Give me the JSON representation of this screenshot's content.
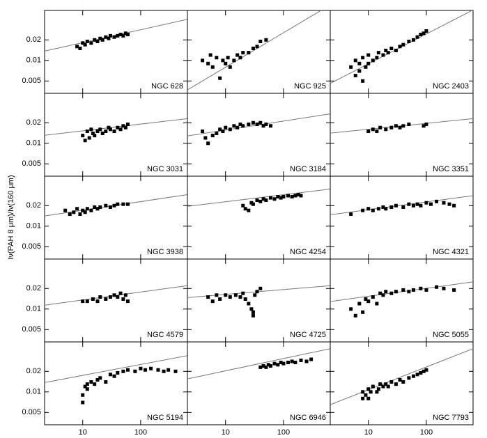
{
  "ylabel": "Iν(PAH 8 μm)/Iν(160 μm)",
  "chart_data": [
    {
      "type": "scatter",
      "title": "NGC 628",
      "xlim": [
        2.2,
        640
      ],
      "ylim": [
        0.0033,
        0.054
      ],
      "xticks": [
        10,
        100
      ],
      "yticks": [
        0.005,
        0.01,
        0.02
      ],
      "log_x": true,
      "log_y": true,
      "color": "#000000",
      "x": [
        8,
        9,
        10,
        11,
        12,
        14,
        16,
        18,
        20,
        22,
        25,
        28,
        30,
        35,
        40,
        45,
        50,
        55,
        60
      ],
      "y": [
        0.016,
        0.015,
        0.018,
        0.017,
        0.019,
        0.018,
        0.02,
        0.019,
        0.021,
        0.02,
        0.022,
        0.021,
        0.023,
        0.022,
        0.023,
        0.024,
        0.023,
        0.025,
        0.024
      ],
      "fit": [
        0.0137,
        0.04
      ]
    },
    {
      "type": "scatter",
      "title": "NGC 925",
      "xlim": [
        2.2,
        640
      ],
      "ylim": [
        0.0033,
        0.054
      ],
      "xticks": [
        10,
        100
      ],
      "yticks": [
        0.005,
        0.01,
        0.02
      ],
      "log_x": true,
      "log_y": true,
      "color": "#000000",
      "x": [
        4,
        5,
        5.5,
        6,
        7,
        8,
        9,
        10,
        11,
        12,
        14,
        16,
        18,
        20,
        25,
        30,
        35,
        40,
        50
      ],
      "y": [
        0.01,
        0.009,
        0.012,
        0.008,
        0.011,
        0.0055,
        0.01,
        0.009,
        0.011,
        0.008,
        0.01,
        0.012,
        0.011,
        0.013,
        0.013,
        0.015,
        0.016,
        0.019,
        0.02
      ],
      "fit": [
        0.0037,
        0.065
      ]
    },
    {
      "type": "scatter",
      "title": "NGC 2403",
      "xlim": [
        2.2,
        640
      ],
      "ylim": [
        0.0033,
        0.054
      ],
      "xticks": [
        10,
        100
      ],
      "yticks": [
        0.005,
        0.01,
        0.02
      ],
      "log_x": true,
      "log_y": true,
      "color": "#000000",
      "x": [
        5,
        6,
        6,
        7,
        7,
        8,
        8,
        9,
        10,
        10,
        12,
        14,
        15,
        18,
        20,
        22,
        25,
        30,
        35,
        40,
        50,
        60,
        70,
        80,
        90,
        100
      ],
      "y": [
        0.008,
        0.006,
        0.01,
        0.007,
        0.009,
        0.005,
        0.011,
        0.008,
        0.009,
        0.012,
        0.01,
        0.011,
        0.013,
        0.012,
        0.014,
        0.013,
        0.015,
        0.014,
        0.016,
        0.017,
        0.019,
        0.02,
        0.022,
        0.024,
        0.025,
        0.027
      ],
      "fit": [
        0.0046,
        0.055
      ]
    },
    {
      "type": "scatter",
      "title": "NGC 3031",
      "xlim": [
        2.2,
        640
      ],
      "ylim": [
        0.0033,
        0.054
      ],
      "xticks": [
        10,
        100
      ],
      "yticks": [
        0.005,
        0.01,
        0.02
      ],
      "log_x": true,
      "log_y": true,
      "color": "#000000",
      "x": [
        10,
        11,
        12,
        13,
        14,
        15,
        16,
        18,
        20,
        22,
        25,
        28,
        30,
        35,
        40,
        45,
        50,
        55,
        60
      ],
      "y": [
        0.013,
        0.011,
        0.015,
        0.012,
        0.016,
        0.014,
        0.013,
        0.015,
        0.016,
        0.014,
        0.015,
        0.017,
        0.016,
        0.015,
        0.017,
        0.016,
        0.018,
        0.017,
        0.019
      ],
      "fit": [
        0.0131,
        0.023
      ]
    },
    {
      "type": "scatter",
      "title": "NGC 3184",
      "xlim": [
        2.2,
        640
      ],
      "ylim": [
        0.0033,
        0.054
      ],
      "xticks": [
        10,
        100
      ],
      "yticks": [
        0.005,
        0.01,
        0.02
      ],
      "log_x": true,
      "log_y": true,
      "color": "#000000",
      "x": [
        4,
        4.5,
        5,
        6,
        7,
        8,
        9,
        10,
        12,
        14,
        16,
        18,
        20,
        25,
        30,
        35,
        40,
        45,
        50,
        60
      ],
      "y": [
        0.015,
        0.012,
        0.01,
        0.013,
        0.014,
        0.016,
        0.015,
        0.017,
        0.016,
        0.018,
        0.017,
        0.019,
        0.018,
        0.019,
        0.02,
        0.019,
        0.02,
        0.018,
        0.019,
        0.018
      ],
      "fit": [
        0.0128,
        0.027
      ]
    },
    {
      "type": "scatter",
      "title": "NGC 3351",
      "xlim": [
        2.2,
        640
      ],
      "ylim": [
        0.0033,
        0.054
      ],
      "xticks": [
        10,
        100
      ],
      "yticks": [
        0.005,
        0.01,
        0.02
      ],
      "log_x": true,
      "log_y": true,
      "color": "#000000",
      "x": [
        10,
        12,
        14,
        16,
        20,
        25,
        30,
        35,
        40,
        50,
        90,
        100
      ],
      "y": [
        0.015,
        0.016,
        0.015,
        0.017,
        0.016,
        0.017,
        0.018,
        0.017,
        0.018,
        0.019,
        0.018,
        0.019
      ],
      "fit": [
        0.0141,
        0.023
      ]
    },
    {
      "type": "scatter",
      "title": "NGC 3938",
      "xlim": [
        2.2,
        640
      ],
      "ylim": [
        0.0033,
        0.054
      ],
      "xticks": [
        10,
        100
      ],
      "yticks": [
        0.005,
        0.01,
        0.02
      ],
      "log_x": true,
      "log_y": true,
      "color": "#000000",
      "x": [
        5,
        6,
        7,
        8,
        9,
        10,
        11,
        12,
        14,
        16,
        18,
        20,
        25,
        30,
        35,
        40,
        50,
        60
      ],
      "y": [
        0.017,
        0.015,
        0.016,
        0.018,
        0.015,
        0.017,
        0.016,
        0.018,
        0.017,
        0.019,
        0.018,
        0.019,
        0.02,
        0.019,
        0.02,
        0.021,
        0.021,
        0.021
      ],
      "fit": [
        0.0141,
        0.029
      ]
    },
    {
      "type": "scatter",
      "title": "NGC 4254",
      "xlim": [
        2.2,
        640
      ],
      "ylim": [
        0.0033,
        0.054
      ],
      "xticks": [
        10,
        100
      ],
      "yticks": [
        0.005,
        0.01,
        0.02
      ],
      "log_x": true,
      "log_y": true,
      "color": "#000000",
      "x": [
        20,
        22,
        25,
        28,
        30,
        35,
        40,
        45,
        50,
        60,
        70,
        80,
        90,
        100,
        120,
        140,
        160,
        180,
        200
      ],
      "y": [
        0.02,
        0.018,
        0.017,
        0.022,
        0.021,
        0.024,
        0.023,
        0.025,
        0.024,
        0.026,
        0.025,
        0.027,
        0.026,
        0.027,
        0.028,
        0.027,
        0.028,
        0.029,
        0.028
      ],
      "fit": [
        0.0195,
        0.035
      ]
    },
    {
      "type": "scatter",
      "title": "NGC 4321",
      "xlim": [
        2.2,
        640
      ],
      "ylim": [
        0.0033,
        0.054
      ],
      "xticks": [
        10,
        100
      ],
      "yticks": [
        0.005,
        0.01,
        0.02
      ],
      "log_x": true,
      "log_y": true,
      "color": "#000000",
      "x": [
        5,
        8,
        10,
        12,
        15,
        18,
        20,
        25,
        30,
        40,
        50,
        60,
        70,
        80,
        100,
        120,
        150,
        200,
        250,
        300
      ],
      "y": [
        0.015,
        0.017,
        0.018,
        0.017,
        0.018,
        0.019,
        0.018,
        0.019,
        0.02,
        0.019,
        0.021,
        0.02,
        0.021,
        0.02,
        0.022,
        0.021,
        0.023,
        0.022,
        0.021,
        0.02
      ],
      "fit": [
        0.0147,
        0.028
      ]
    },
    {
      "type": "scatter",
      "title": "NGC 4579",
      "xlim": [
        2.2,
        640
      ],
      "ylim": [
        0.0033,
        0.054
      ],
      "xticks": [
        10,
        100
      ],
      "yticks": [
        0.005,
        0.01,
        0.02
      ],
      "log_x": true,
      "log_y": true,
      "color": "#000000",
      "x": [
        10,
        12,
        15,
        18,
        20,
        25,
        30,
        35,
        40,
        45,
        50,
        55,
        60
      ],
      "y": [
        0.013,
        0.013,
        0.014,
        0.013,
        0.015,
        0.014,
        0.015,
        0.016,
        0.015,
        0.017,
        0.014,
        0.016,
        0.013
      ],
      "fit": [
        0.0114,
        0.022
      ]
    },
    {
      "type": "scatter",
      "title": "NGC 4725",
      "xlim": [
        2.2,
        640
      ],
      "ylim": [
        0.0033,
        0.054
      ],
      "xticks": [
        10,
        100
      ],
      "yticks": [
        0.005,
        0.01,
        0.02
      ],
      "log_x": true,
      "log_y": true,
      "color": "#000000",
      "x": [
        5,
        6,
        7,
        8,
        10,
        12,
        15,
        18,
        20,
        22,
        25,
        28,
        30,
        30,
        32,
        35,
        40
      ],
      "y": [
        0.015,
        0.013,
        0.016,
        0.014,
        0.016,
        0.015,
        0.016,
        0.015,
        0.017,
        0.014,
        0.012,
        0.01,
        0.009,
        0.008,
        0.016,
        0.018,
        0.02
      ],
      "fit": [
        0.0147,
        0.022
      ]
    },
    {
      "type": "scatter",
      "title": "NGC 5055",
      "xlim": [
        2.2,
        640
      ],
      "ylim": [
        0.0033,
        0.054
      ],
      "xticks": [
        10,
        100
      ],
      "yticks": [
        0.005,
        0.01,
        0.02
      ],
      "log_x": true,
      "log_y": true,
      "color": "#000000",
      "x": [
        5,
        6,
        7,
        8,
        9,
        10,
        12,
        14,
        16,
        18,
        20,
        25,
        30,
        40,
        50,
        60,
        80,
        100,
        150,
        200,
        300
      ],
      "y": [
        0.01,
        0.008,
        0.012,
        0.009,
        0.014,
        0.013,
        0.015,
        0.012,
        0.017,
        0.016,
        0.018,
        0.017,
        0.018,
        0.019,
        0.018,
        0.019,
        0.02,
        0.019,
        0.021,
        0.02,
        0.019
      ],
      "fit": [
        0.0129,
        0.025
      ]
    },
    {
      "type": "scatter",
      "title": "NGC 5194",
      "xlim": [
        2.2,
        640
      ],
      "ylim": [
        0.0033,
        0.054
      ],
      "xticks": [
        10,
        100
      ],
      "yticks": [
        0.005,
        0.01,
        0.02
      ],
      "log_x": true,
      "log_y": true,
      "color": "#000000",
      "x": [
        10,
        10,
        11,
        12,
        12,
        14,
        16,
        18,
        20,
        25,
        30,
        35,
        40,
        50,
        60,
        80,
        100,
        120,
        150,
        200,
        250,
        300,
        400
      ],
      "y": [
        0.007,
        0.009,
        0.012,
        0.011,
        0.013,
        0.014,
        0.013,
        0.015,
        0.016,
        0.014,
        0.018,
        0.017,
        0.019,
        0.02,
        0.021,
        0.02,
        0.022,
        0.021,
        0.022,
        0.021,
        0.02,
        0.021,
        0.02
      ],
      "fit": [
        0.0137,
        0.034
      ]
    },
    {
      "type": "scatter",
      "title": "NGC 6946",
      "xlim": [
        2.2,
        640
      ],
      "ylim": [
        0.0033,
        0.054
      ],
      "xticks": [
        10,
        100
      ],
      "yticks": [
        0.005,
        0.01,
        0.02
      ],
      "log_x": true,
      "log_y": true,
      "color": "#000000",
      "x": [
        40,
        45,
        50,
        55,
        60,
        70,
        80,
        90,
        100,
        120,
        140,
        160,
        200,
        250,
        300
      ],
      "y": [
        0.023,
        0.024,
        0.023,
        0.025,
        0.024,
        0.026,
        0.025,
        0.027,
        0.026,
        0.027,
        0.028,
        0.027,
        0.029,
        0.028,
        0.03
      ],
      "fit": [
        0.0155,
        0.043
      ]
    },
    {
      "type": "scatter",
      "title": "NGC 7793",
      "xlim": [
        2.2,
        640
      ],
      "ylim": [
        0.0033,
        0.054
      ],
      "xticks": [
        10,
        100
      ],
      "yticks": [
        0.005,
        0.01,
        0.02
      ],
      "log_x": true,
      "log_y": true,
      "color": "#000000",
      "x": [
        8,
        8,
        9,
        10,
        10,
        11,
        12,
        14,
        15,
        16,
        18,
        20,
        22,
        25,
        30,
        35,
        40,
        50,
        60,
        70,
        80,
        90,
        100
      ],
      "y": [
        0.008,
        0.01,
        0.009,
        0.011,
        0.008,
        0.01,
        0.012,
        0.01,
        0.011,
        0.013,
        0.012,
        0.013,
        0.012,
        0.014,
        0.013,
        0.015,
        0.014,
        0.016,
        0.017,
        0.018,
        0.019,
        0.02,
        0.021
      ],
      "fit": [
        0.0065,
        0.043
      ]
    }
  ]
}
